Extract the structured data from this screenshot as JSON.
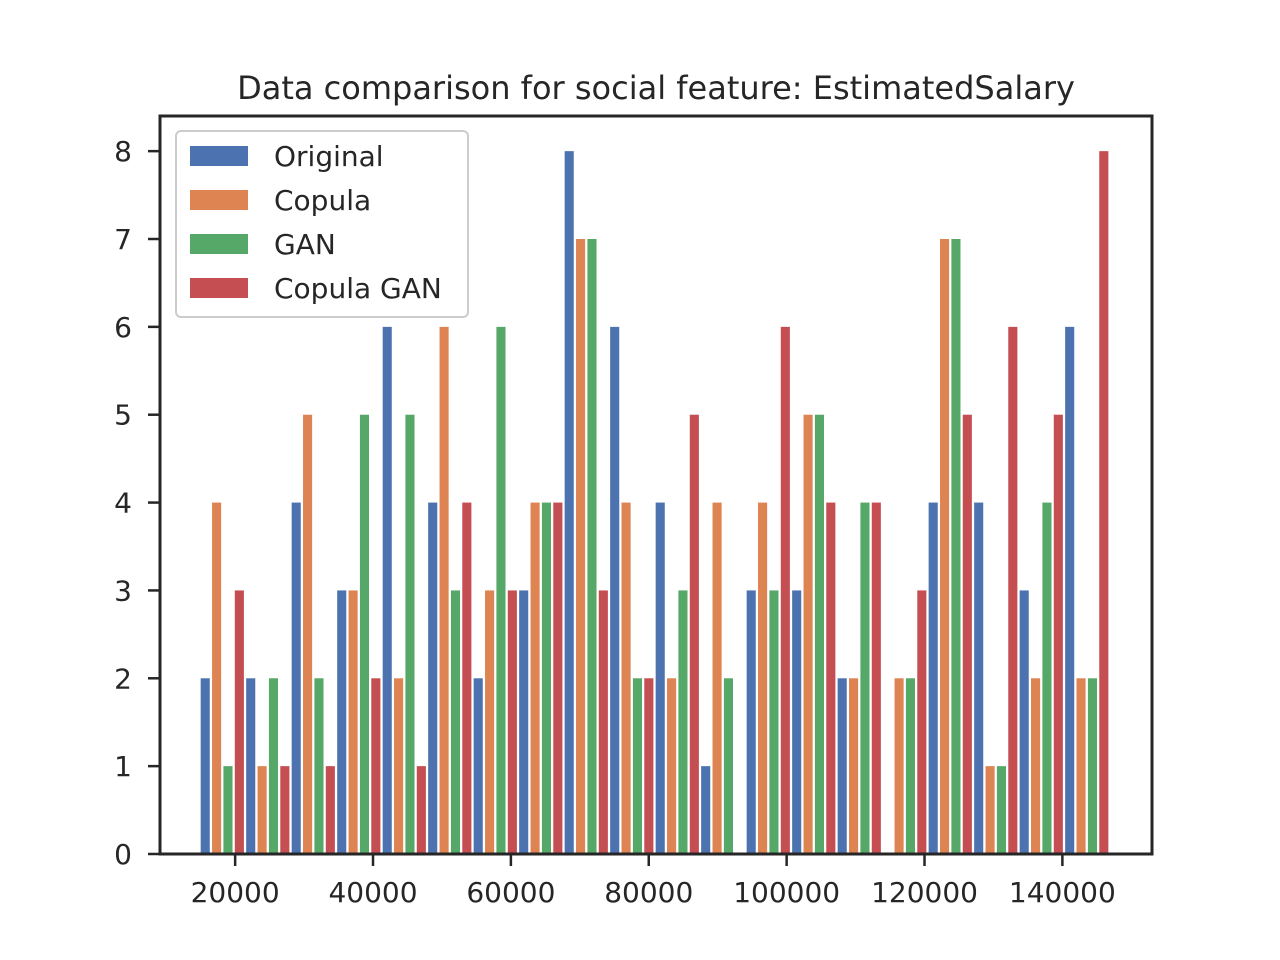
{
  "chart_data": {
    "type": "bar",
    "title": "Data comparison for social feature: EstimatedSalary",
    "xlabel": "",
    "ylabel": "",
    "xlim": [
      9100,
      153000
    ],
    "ylim": [
      0,
      8.4
    ],
    "x_ticks": [
      20000,
      40000,
      60000,
      80000,
      100000,
      120000,
      140000
    ],
    "y_ticks": [
      0,
      1,
      2,
      3,
      4,
      5,
      6,
      7,
      8
    ],
    "bins": [
      [
        15000,
        21600
      ],
      [
        21600,
        28200
      ],
      [
        28200,
        34800
      ],
      [
        34800,
        41400
      ],
      [
        41400,
        48000
      ],
      [
        48000,
        54600
      ],
      [
        54600,
        61200
      ],
      [
        61200,
        67800
      ],
      [
        67800,
        74400
      ],
      [
        74400,
        81000
      ],
      [
        81000,
        87600
      ],
      [
        87600,
        94200
      ],
      [
        94200,
        100800
      ],
      [
        100800,
        107400
      ],
      [
        107400,
        114000
      ],
      [
        114000,
        120600
      ],
      [
        120600,
        127200
      ],
      [
        127200,
        133800
      ],
      [
        133800,
        140400
      ],
      [
        140400,
        147000
      ]
    ],
    "series": [
      {
        "name": "Original",
        "color": "#4c72b0",
        "values": [
          2,
          2,
          4,
          3,
          6,
          4,
          2,
          3,
          8,
          6,
          4,
          1,
          3,
          3,
          2,
          0,
          4,
          4,
          3,
          6
        ]
      },
      {
        "name": "Copula",
        "color": "#dd8452",
        "values": [
          4,
          1,
          5,
          3,
          2,
          6,
          3,
          4,
          7,
          4,
          2,
          4,
          4,
          5,
          2,
          2,
          7,
          1,
          2,
          2
        ]
      },
      {
        "name": "GAN",
        "color": "#55a868",
        "values": [
          1,
          2,
          2,
          5,
          5,
          3,
          6,
          4,
          7,
          2,
          3,
          2,
          3,
          5,
          4,
          2,
          7,
          1,
          4,
          2
        ]
      },
      {
        "name": "Copula GAN",
        "color": "#c44e52",
        "values": [
          3,
          1,
          1,
          2,
          1,
          4,
          3,
          4,
          3,
          2,
          5,
          0,
          6,
          4,
          4,
          3,
          5,
          6,
          5,
          8
        ]
      }
    ],
    "legend": {
      "placement": "top-left"
    },
    "grid": false
  }
}
